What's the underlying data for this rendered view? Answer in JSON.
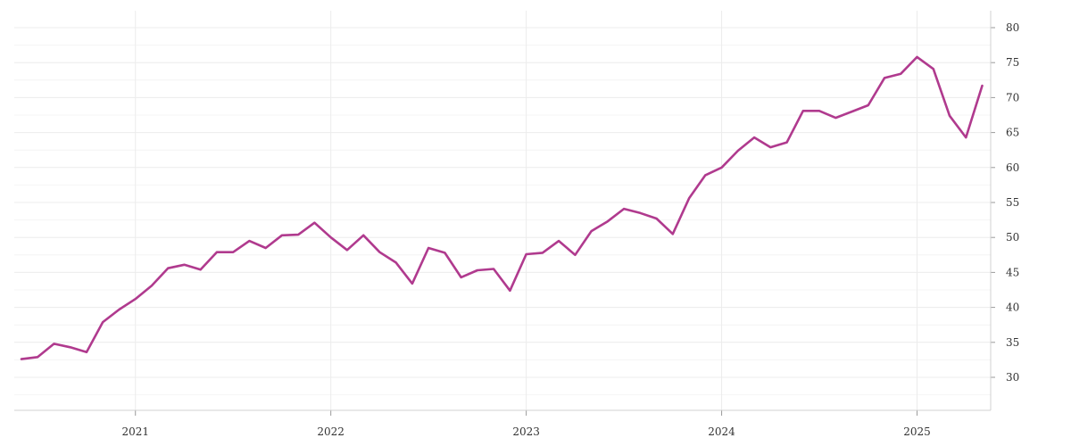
{
  "chart_data": {
    "type": "line",
    "title": "",
    "xlabel": "",
    "ylabel": "",
    "x_ticks": [
      "2021",
      "2022",
      "2023",
      "2024",
      "2025"
    ],
    "y_ticks": [
      30,
      35,
      40,
      45,
      50,
      55,
      60,
      65,
      70,
      75,
      80
    ],
    "ylim": [
      25,
      82
    ],
    "xlim": [
      "2020-06",
      "2025-05"
    ],
    "grid": true,
    "y_axis_position": "right",
    "line_color": "#b03a8e",
    "series": [
      {
        "x": [
          "2020-06",
          "2020-07",
          "2020-08",
          "2020-09",
          "2020-10",
          "2020-11",
          "2020-12",
          "2021-01",
          "2021-02",
          "2021-03",
          "2021-04",
          "2021-05",
          "2021-06",
          "2021-07",
          "2021-08",
          "2021-09",
          "2021-10",
          "2021-11",
          "2021-12",
          "2022-01",
          "2022-02",
          "2022-03",
          "2022-04",
          "2022-05",
          "2022-06",
          "2022-07",
          "2022-08",
          "2022-09",
          "2022-10",
          "2022-11",
          "2022-12",
          "2023-01",
          "2023-02",
          "2023-03",
          "2023-04",
          "2023-05",
          "2023-06",
          "2023-07",
          "2023-08",
          "2023-09",
          "2023-10",
          "2023-11",
          "2023-12",
          "2024-01",
          "2024-02",
          "2024-03",
          "2024-04",
          "2024-05",
          "2024-06",
          "2024-07",
          "2024-08",
          "2024-09",
          "2024-10",
          "2024-11",
          "2024-12",
          "2025-01",
          "2025-02",
          "2025-03",
          "2025-04",
          "2025-05"
        ],
        "y": [
          32.6,
          32.9,
          34.8,
          34.3,
          33.6,
          37.9,
          39.7,
          41.2,
          43.1,
          45.6,
          46.1,
          45.4,
          47.9,
          47.9,
          49.5,
          48.5,
          50.3,
          50.4,
          52.1,
          50.0,
          48.2,
          50.3,
          47.9,
          46.4,
          43.4,
          48.5,
          47.8,
          44.3,
          45.3,
          45.5,
          42.4,
          47.6,
          47.8,
          49.5,
          47.5,
          50.9,
          52.3,
          54.1,
          53.5,
          52.7,
          50.5,
          55.6,
          58.9,
          60.0,
          62.4,
          64.3,
          62.9,
          63.6,
          68.1,
          68.1,
          67.1,
          68.0,
          68.9,
          72.8,
          73.4,
          75.8,
          74.1,
          67.4,
          64.3,
          71.7
        ]
      }
    ]
  }
}
